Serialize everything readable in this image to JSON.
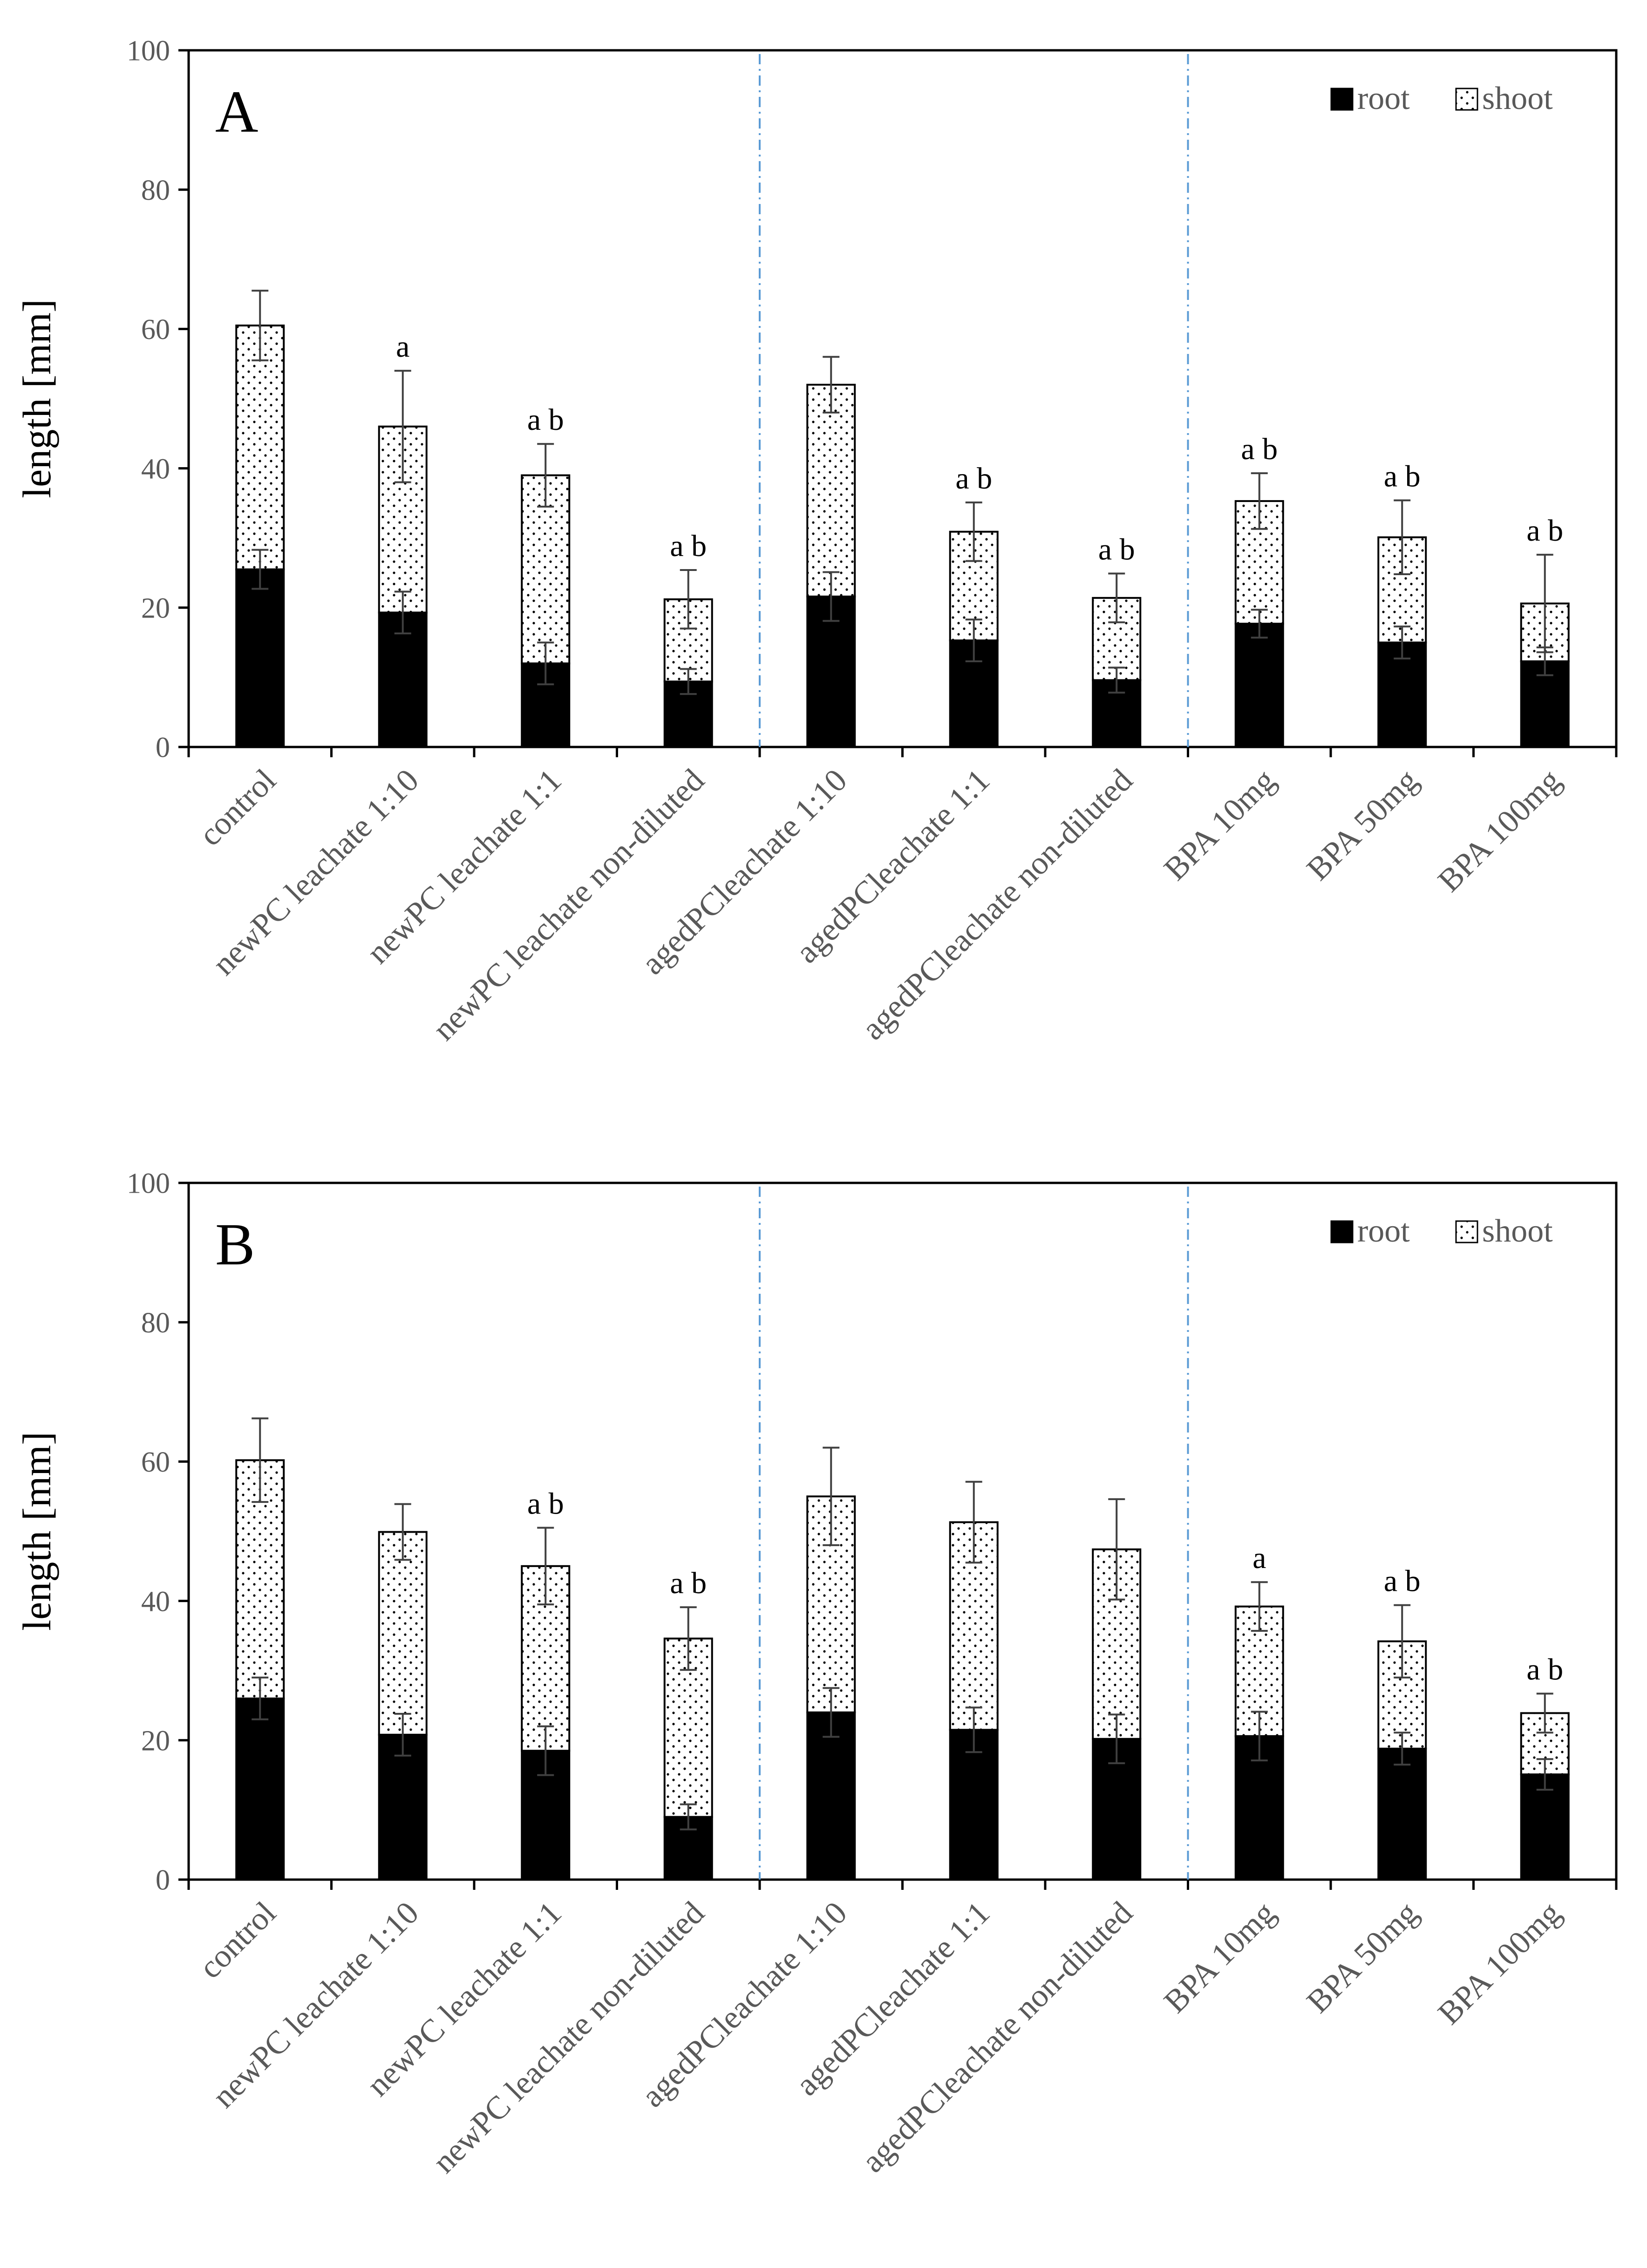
{
  "colors": {
    "root_fill": "#000000",
    "shoot_fill": "#ffffff",
    "shoot_dots": "#000000",
    "axis": "#000000",
    "tick_label": "#595959",
    "divider": "#5b9bd5",
    "error_bar": "#404040"
  },
  "chart_data": [
    {
      "type": "bar",
      "stacked": true,
      "panel_label": "A",
      "ylabel": "length [mm]",
      "ylim": [
        0,
        100
      ],
      "yticks": [
        0,
        20,
        40,
        60,
        80,
        100
      ],
      "grid": false,
      "legend_position": "top-right",
      "categories": [
        "control",
        "newPC leachate 1:10",
        "newPC leachate 1:1",
        "newPC leachate non-diluted",
        "agedPCleachate 1:10",
        "agedPCleachate 1:1",
        "agedPCleachate non-diluted",
        "BPA 10mg",
        "BPA 50mg",
        "BPA 100mg"
      ],
      "group_dividers_after": [
        3,
        6
      ],
      "series": [
        {
          "name": "root",
          "values": [
            25.5,
            19.3,
            12.0,
            9.4,
            21.6,
            15.3,
            9.6,
            17.7,
            15.0,
            12.3
          ],
          "error": [
            2.8,
            3.0,
            3.0,
            1.8,
            3.5,
            3.0,
            1.8,
            2.0,
            2.3,
            2.0
          ]
        },
        {
          "name": "shoot",
          "values": [
            35.0,
            26.7,
            27.0,
            11.8,
            30.4,
            15.6,
            11.8,
            17.6,
            15.1,
            8.3
          ],
          "error": [
            5.0,
            8.0,
            4.5,
            4.2,
            4.0,
            4.2,
            3.5,
            4.0,
            5.3,
            7.0
          ]
        }
      ],
      "annotations": [
        "",
        "a",
        "a b",
        "a b",
        "",
        "a b",
        "a b",
        "a b",
        "a b",
        "a b"
      ]
    },
    {
      "type": "bar",
      "stacked": true,
      "panel_label": "B",
      "ylabel": "length [mm]",
      "ylim": [
        0,
        100
      ],
      "yticks": [
        0,
        20,
        40,
        60,
        80,
        100
      ],
      "grid": false,
      "legend_position": "top-right",
      "categories": [
        "control",
        "newPC leachate 1:10",
        "newPC leachate 1:1",
        "newPC leachate non-diluted",
        "agedPCleachate 1:10",
        "agedPCleachate 1:1",
        "agedPCleachate non-diluted",
        "BPA 10mg",
        "BPA 50mg",
        "BPA 100mg"
      ],
      "group_dividers_after": [
        3,
        6
      ],
      "series": [
        {
          "name": "root",
          "values": [
            26.0,
            20.8,
            18.5,
            9.0,
            24.0,
            21.5,
            20.2,
            20.6,
            18.8,
            15.1
          ],
          "error": [
            3.0,
            3.0,
            3.5,
            1.8,
            3.5,
            3.2,
            3.5,
            3.5,
            2.3,
            2.2
          ]
        },
        {
          "name": "shoot",
          "values": [
            34.2,
            29.1,
            26.5,
            25.6,
            31.0,
            29.8,
            27.2,
            18.6,
            15.4,
            8.8
          ],
          "error": [
            6.0,
            4.0,
            5.5,
            4.5,
            7.0,
            5.8,
            7.2,
            3.5,
            5.2,
            2.8
          ]
        }
      ],
      "annotations": [
        "",
        "",
        "a b",
        "a b",
        "",
        "",
        "",
        "a",
        "a b",
        "a b"
      ]
    }
  ]
}
